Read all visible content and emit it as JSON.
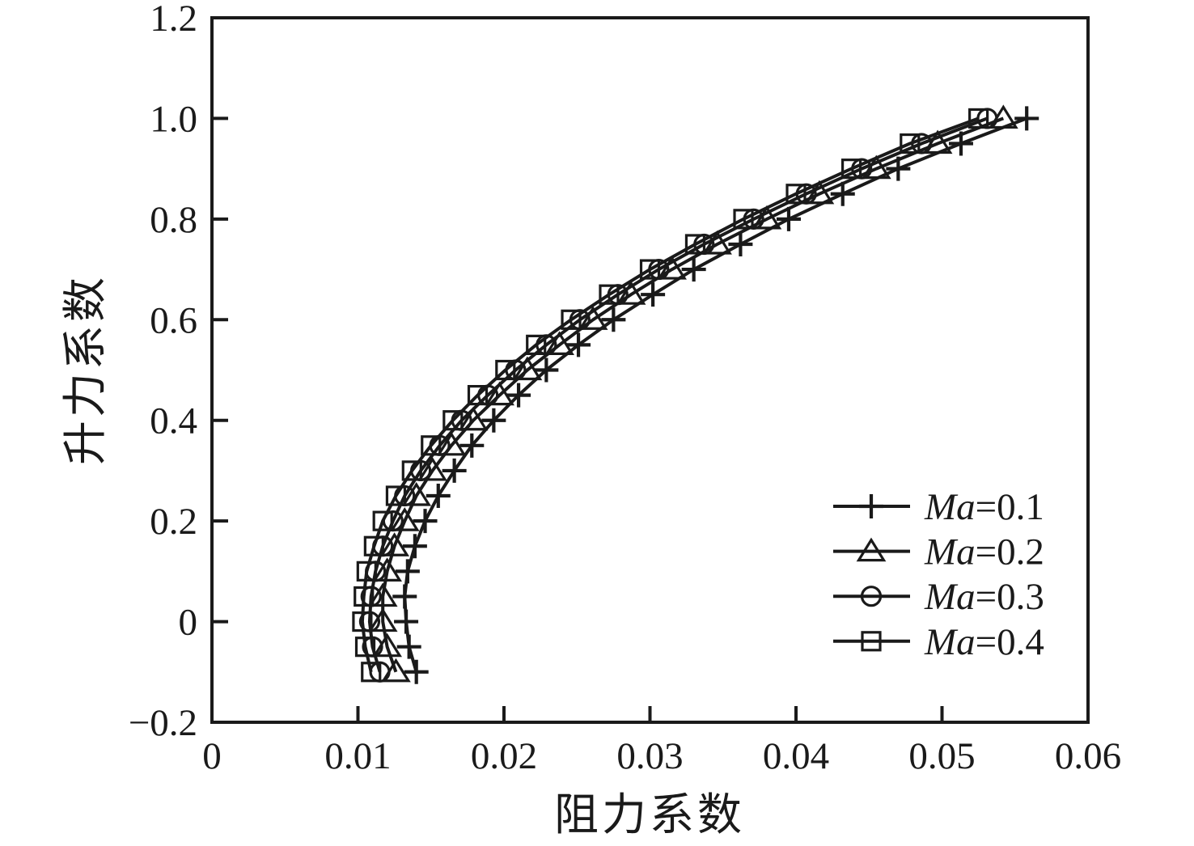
{
  "figure": {
    "background": "#ffffff",
    "ink_color": "#1a1a1a"
  },
  "chart_data": {
    "type": "line",
    "title": "",
    "xlabel": "阻力系数",
    "ylabel": "升力系数",
    "xlim": [
      0,
      0.06
    ],
    "ylim": [
      -0.2,
      1.2
    ],
    "grid": false,
    "legend_position": "lower-right-inside",
    "x_ticks": [
      0,
      0.01,
      0.02,
      0.03,
      0.04,
      0.05,
      0.06
    ],
    "x_tick_labels": [
      "0",
      "0.01",
      "0.02",
      "0.03",
      "0.04",
      "0.05",
      "0.06"
    ],
    "y_ticks": [
      1.2,
      1.0,
      0.8,
      0.6,
      0.4,
      0.2,
      0,
      -0.2
    ],
    "y_tick_labels": [
      "1.2",
      "1.0",
      "0.8",
      "0.6",
      "0.4",
      "0.2",
      "0",
      "−0.2"
    ],
    "y_values_cl": [
      -0.1,
      -0.05,
      0.0,
      0.05,
      0.1,
      0.15,
      0.2,
      0.25,
      0.3,
      0.35,
      0.4,
      0.45,
      0.5,
      0.55,
      0.6,
      0.65,
      0.7,
      0.75,
      0.8,
      0.85,
      0.9,
      0.95,
      1.0
    ],
    "series": [
      {
        "label": "Ma=0.1",
        "label_italic": "Ma",
        "label_rest": "=0.1",
        "marker": "plus",
        "color": "#1a1a1a",
        "x_values_cd": [
          0.014,
          0.0135,
          0.0133,
          0.0132,
          0.0134,
          0.0139,
          0.0146,
          0.0155,
          0.0166,
          0.0178,
          0.0193,
          0.021,
          0.0229,
          0.0251,
          0.0275,
          0.0302,
          0.033,
          0.0362,
          0.0395,
          0.0432,
          0.047,
          0.0513,
          0.0558
        ]
      },
      {
        "label": "Ma=0.2",
        "label_italic": "Ma",
        "label_rest": "=0.2",
        "marker": "triangle",
        "color": "#1a1a1a",
        "x_values_cd": [
          0.0126,
          0.012,
          0.0117,
          0.0117,
          0.012,
          0.0125,
          0.0132,
          0.014,
          0.0151,
          0.0164,
          0.0179,
          0.0197,
          0.0216,
          0.0238,
          0.0261,
          0.0287,
          0.0315,
          0.0346,
          0.038,
          0.0416,
          0.0455,
          0.0497,
          0.0542
        ]
      },
      {
        "label": "Ma=0.3",
        "label_italic": "Ma",
        "label_rest": "=0.3",
        "marker": "circle",
        "color": "#1a1a1a",
        "x_values_cd": [
          0.0115,
          0.011,
          0.0108,
          0.0109,
          0.0112,
          0.0117,
          0.0124,
          0.0132,
          0.0143,
          0.0156,
          0.0171,
          0.0189,
          0.0208,
          0.0229,
          0.0252,
          0.0278,
          0.0306,
          0.0337,
          0.0371,
          0.0407,
          0.0445,
          0.0486,
          0.0531
        ]
      },
      {
        "label": "Ma=0.4",
        "label_italic": "Ma",
        "label_rest": "=0.4",
        "marker": "square",
        "color": "#1a1a1a",
        "x_values_cd": [
          0.0109,
          0.0105,
          0.0103,
          0.0104,
          0.0106,
          0.0111,
          0.0117,
          0.0126,
          0.0137,
          0.015,
          0.0165,
          0.0182,
          0.0201,
          0.0222,
          0.0246,
          0.0272,
          0.03,
          0.0331,
          0.0364,
          0.04,
          0.0438,
          0.0478,
          0.0525
        ]
      }
    ]
  }
}
